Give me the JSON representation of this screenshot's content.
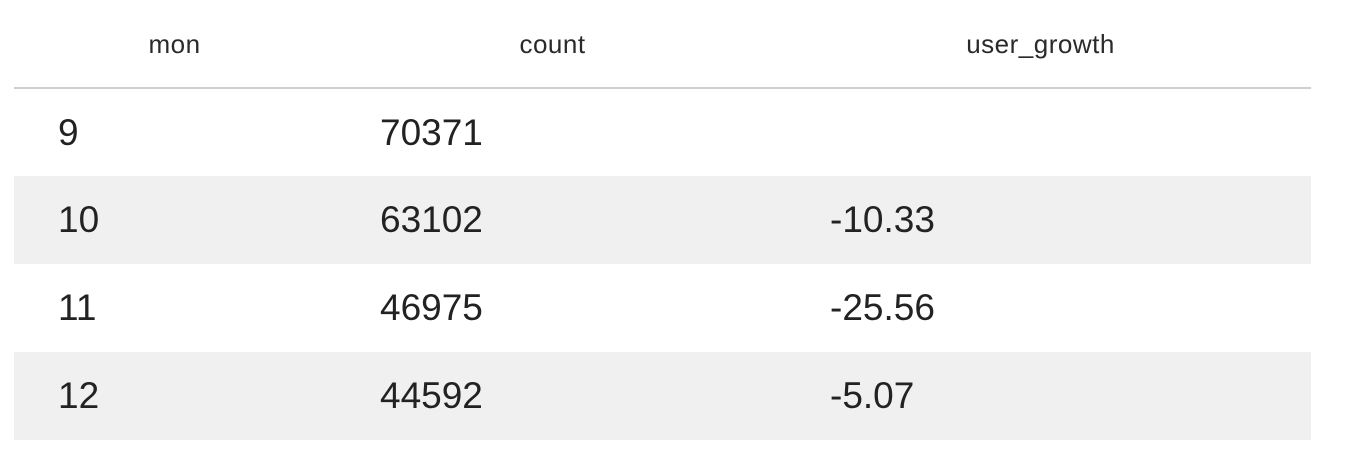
{
  "table": {
    "columns": [
      "mon",
      "count",
      "user_growth"
    ],
    "rows": [
      {
        "mon": "9",
        "count": "70371",
        "user_growth": ""
      },
      {
        "mon": "10",
        "count": "63102",
        "user_growth": "-10.33"
      },
      {
        "mon": "11",
        "count": "46975",
        "user_growth": "-25.56"
      },
      {
        "mon": "12",
        "count": "44592",
        "user_growth": "-5.07"
      }
    ]
  },
  "colors": {
    "header_border": "#cfcfcf",
    "stripe": "#f0f0f0",
    "text": "#222222"
  }
}
